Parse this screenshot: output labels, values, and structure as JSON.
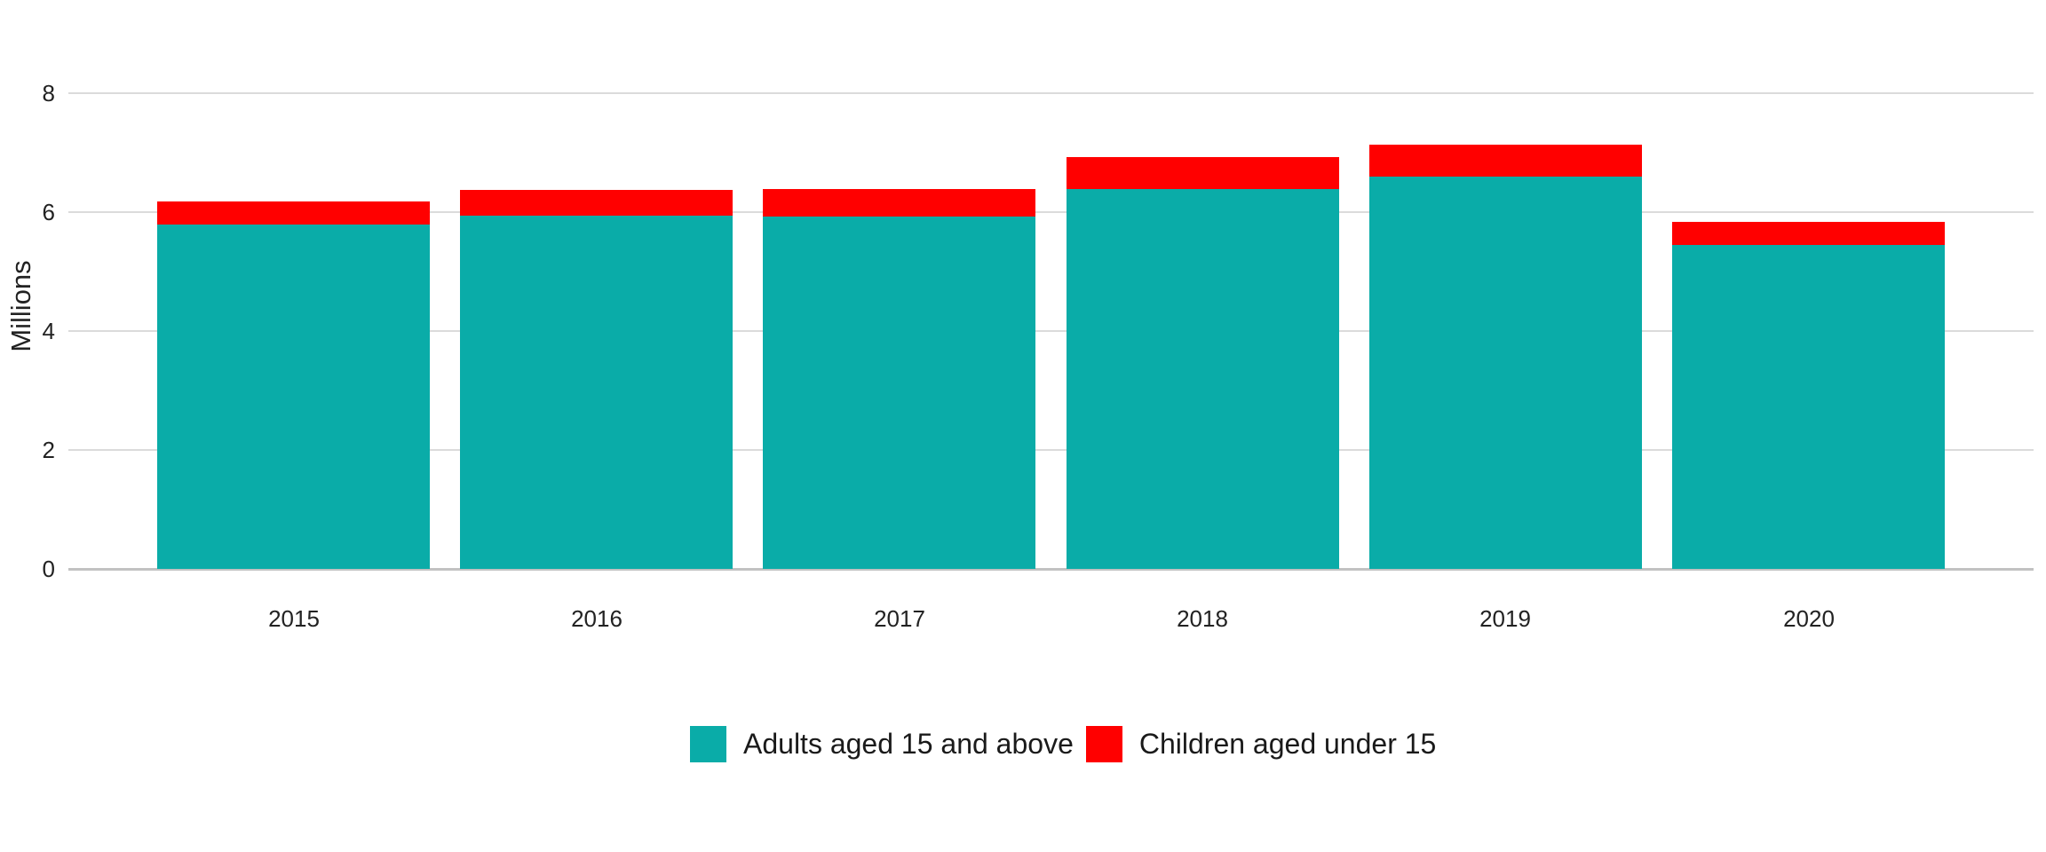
{
  "chart_data": {
    "type": "bar",
    "stacked": true,
    "title": "",
    "xlabel": "",
    "ylabel": "Millions",
    "categories": [
      "2015",
      "2016",
      "2017",
      "2018",
      "2019",
      "2020"
    ],
    "series": [
      {
        "name": "Adults aged 15 and above",
        "color": "#0AACA8",
        "values": [
          5.79,
          5.94,
          5.93,
          6.39,
          6.61,
          5.45
        ]
      },
      {
        "name": "Children aged under 15",
        "color": "#FF0000",
        "values": [
          0.39,
          0.44,
          0.46,
          0.53,
          0.53,
          0.39
        ]
      }
    ],
    "totals": [
      6.18,
      6.38,
      6.39,
      6.92,
      7.14,
      5.84
    ],
    "ylim": [
      0,
      8
    ],
    "yticks": [
      0,
      2,
      4,
      6,
      8
    ],
    "grid": "horizontal",
    "legend_position": "bottom-center"
  },
  "colors": {
    "background": "#FFFFFF",
    "gridline": "#DBDBDB",
    "zero_line": "#C2C2C2",
    "tick_text": "#222222",
    "legend_text": "#1A1A1A",
    "adults_teal": "#0AACA8",
    "children_red": "#FF0000"
  }
}
